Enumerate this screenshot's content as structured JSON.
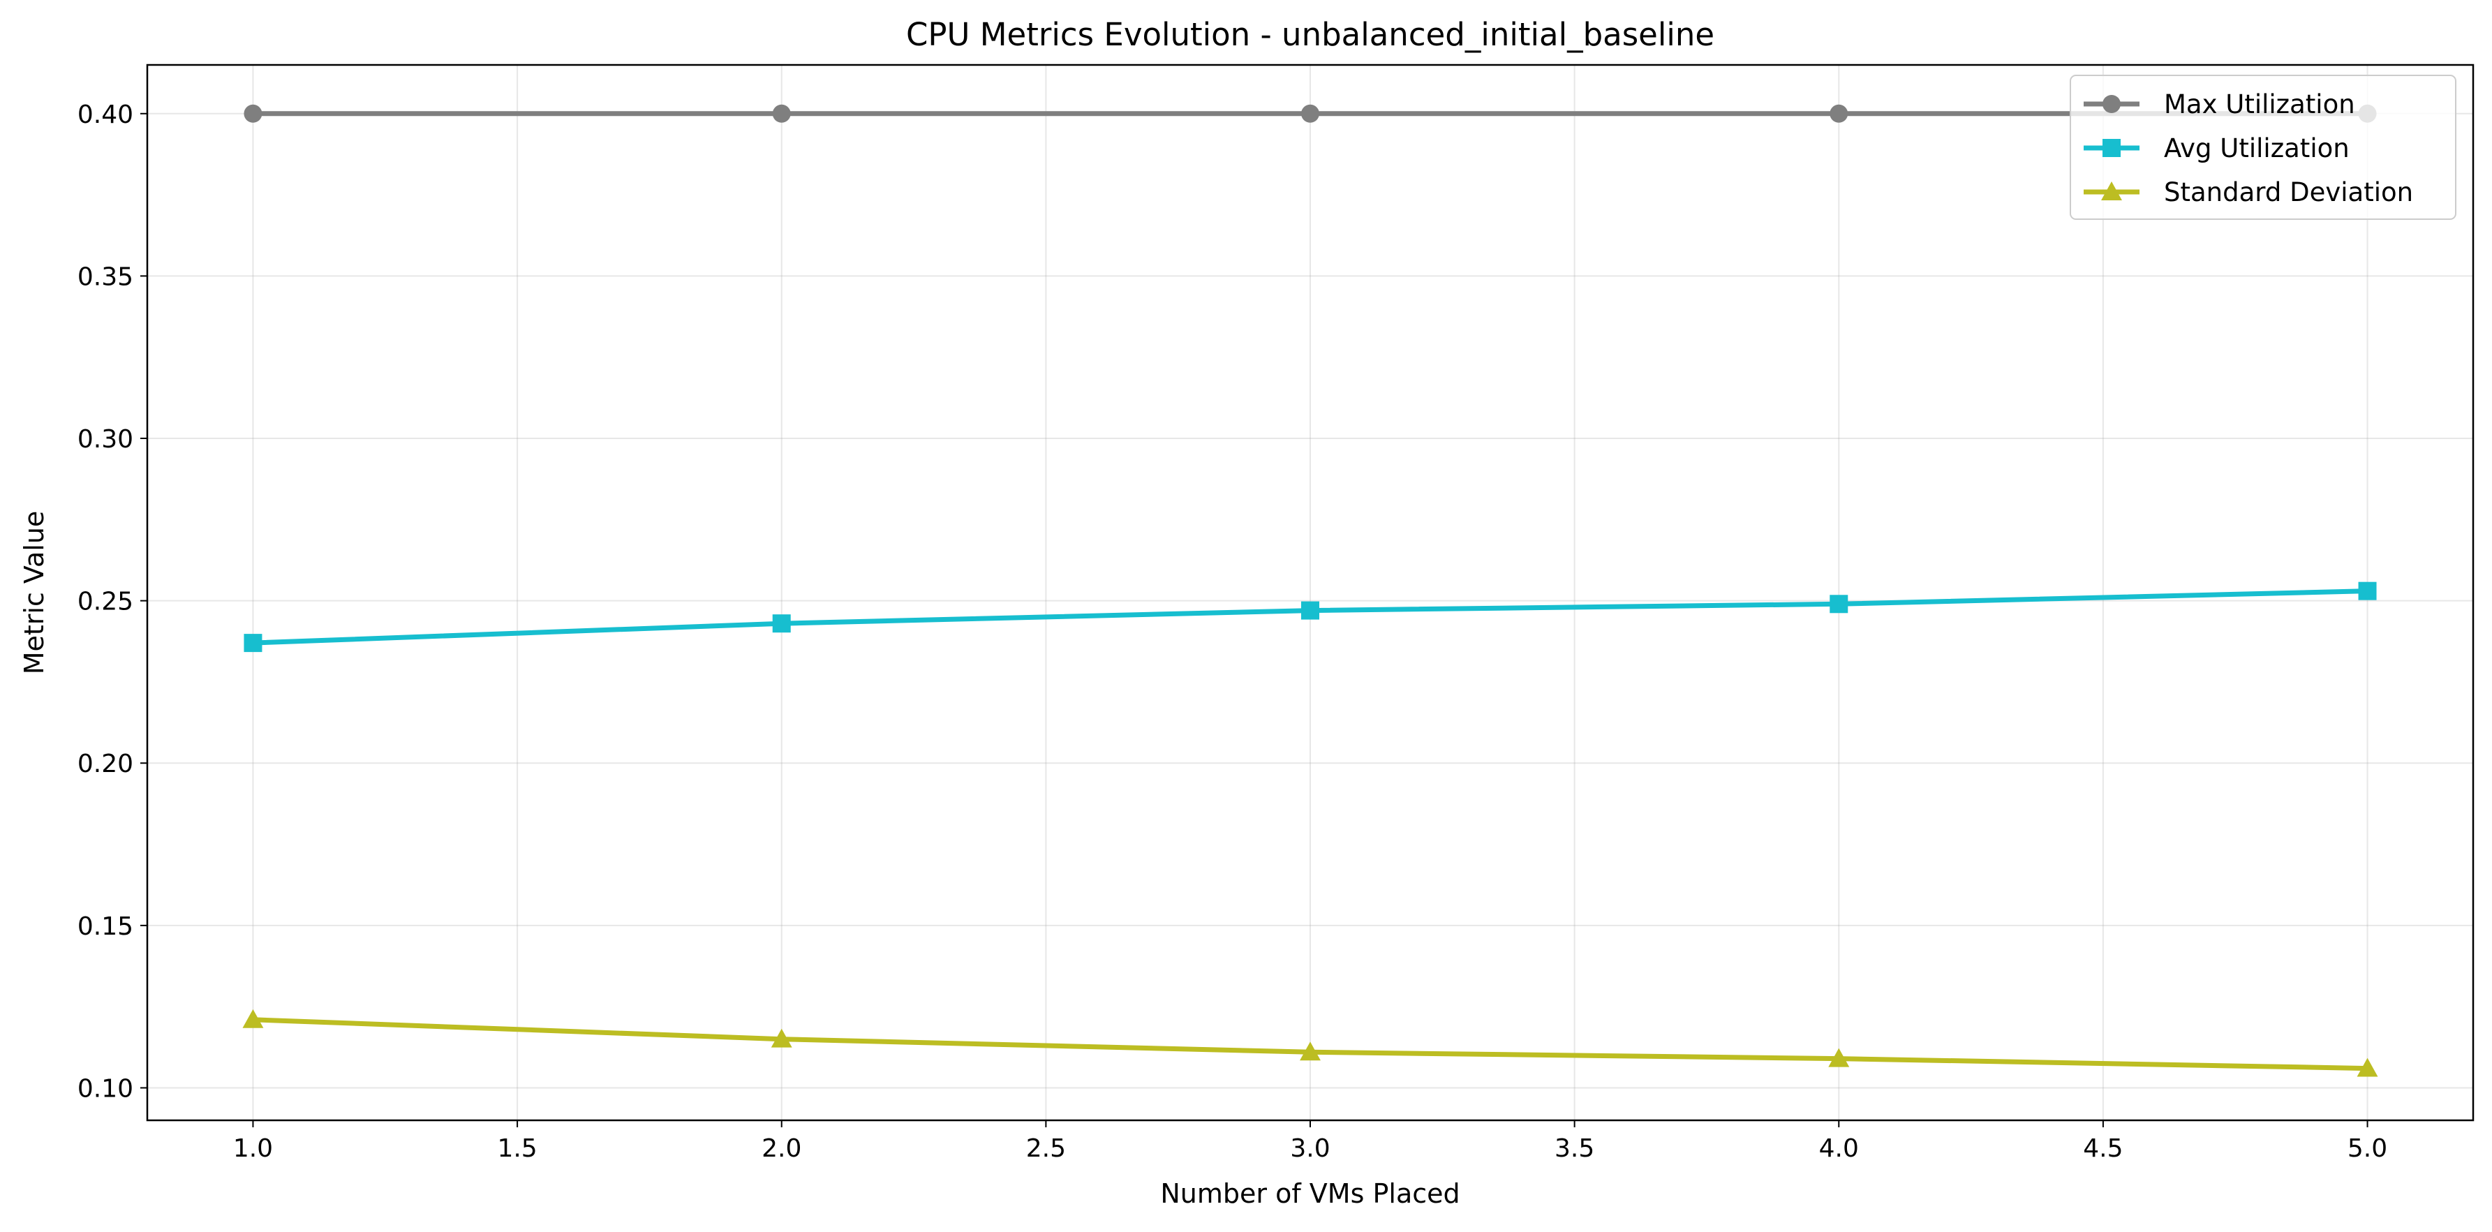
{
  "chart_data": {
    "type": "line",
    "title": "CPU Metrics Evolution - unbalanced_initial_baseline",
    "xlabel": "Number of VMs Placed",
    "ylabel": "Metric Value",
    "xlim": [
      0.8,
      5.2
    ],
    "ylim": [
      0.09,
      0.415
    ],
    "x_ticks": [
      1.0,
      1.5,
      2.0,
      2.5,
      3.0,
      3.5,
      4.0,
      4.5,
      5.0
    ],
    "x_tick_labels": [
      "1.0",
      "1.5",
      "2.0",
      "2.5",
      "3.0",
      "3.5",
      "4.0",
      "4.5",
      "5.0"
    ],
    "y_ticks": [
      0.1,
      0.15,
      0.2,
      0.25,
      0.3,
      0.35,
      0.4
    ],
    "y_tick_labels": [
      "0.10",
      "0.15",
      "0.20",
      "0.25",
      "0.30",
      "0.35",
      "0.40"
    ],
    "grid": true,
    "legend_position": "top-right",
    "x": [
      1,
      2,
      3,
      4,
      5
    ],
    "series": [
      {
        "name": "Max Utilization",
        "color": "#7f7f7f",
        "marker": "circle",
        "values": [
          0.4,
          0.4,
          0.4,
          0.4,
          0.4
        ]
      },
      {
        "name": "Avg Utilization",
        "color": "#17becf",
        "marker": "square",
        "values": [
          0.237,
          0.243,
          0.247,
          0.249,
          0.253
        ]
      },
      {
        "name": "Standard Deviation",
        "color": "#bcbd22",
        "marker": "triangle",
        "values": [
          0.121,
          0.115,
          0.111,
          0.109,
          0.106
        ]
      }
    ]
  }
}
